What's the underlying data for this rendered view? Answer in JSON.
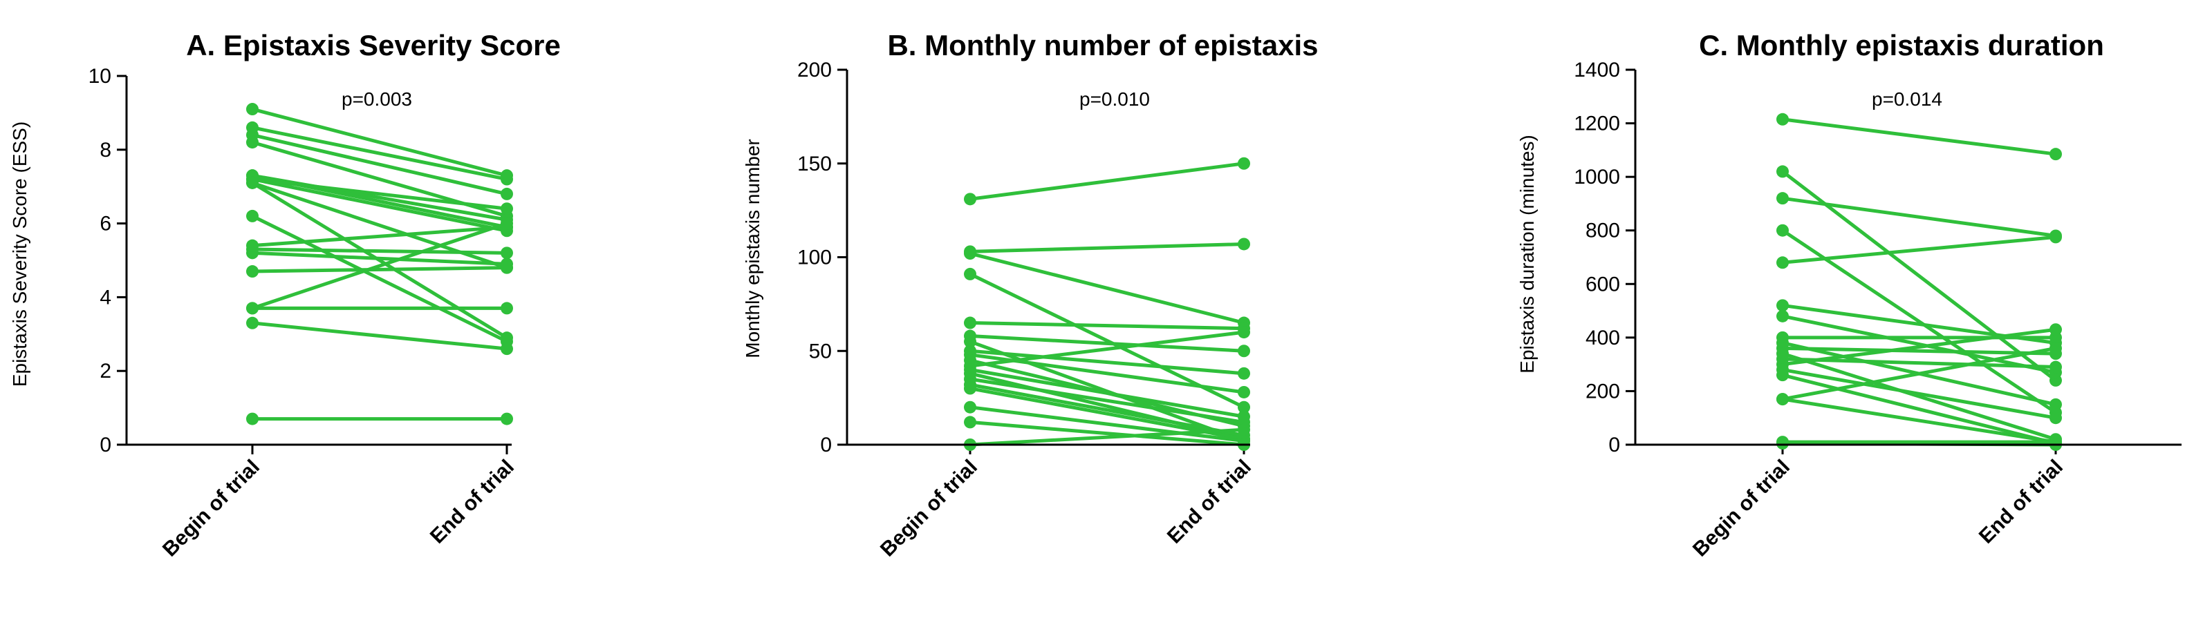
{
  "colors": {
    "series": "#2fbf3a",
    "axis": "#000000"
  },
  "chart_data": [
    {
      "type": "line",
      "title": "A. Epistaxis Severity Score",
      "annotation": "p=0.003",
      "ylabel": "Epistaxis Severity Score  (ESS)",
      "xlabel": "",
      "categories": [
        "Begin of trial",
        "End of trial"
      ],
      "ylim": [
        0,
        10
      ],
      "yticks": [
        0,
        2,
        4,
        6,
        8,
        10
      ],
      "pairs": [
        [
          9.1,
          7.3
        ],
        [
          8.6,
          7.2
        ],
        [
          8.4,
          6.8
        ],
        [
          8.2,
          6.2
        ],
        [
          7.3,
          5.9
        ],
        [
          7.3,
          6.1
        ],
        [
          7.2,
          5.8
        ],
        [
          7.2,
          6.4
        ],
        [
          7.1,
          4.8
        ],
        [
          7.1,
          2.9
        ],
        [
          6.2,
          2.8
        ],
        [
          5.3,
          5.2
        ],
        [
          5.2,
          4.9
        ],
        [
          5.4,
          5.9
        ],
        [
          4.7,
          4.8
        ],
        [
          3.7,
          6.0
        ],
        [
          3.7,
          3.7
        ],
        [
          3.3,
          2.6
        ],
        [
          0.7,
          0.7
        ]
      ]
    },
    {
      "type": "line",
      "title": "B. Monthly number of epistaxis",
      "annotation": "p=0.010",
      "ylabel": "Monthly epistaxis number",
      "xlabel": "",
      "categories": [
        "Begin of trial",
        "End of trial"
      ],
      "ylim": [
        0,
        200
      ],
      "yticks": [
        0,
        50,
        100,
        150,
        200
      ],
      "pairs": [
        [
          131,
          150
        ],
        [
          103,
          107
        ],
        [
          102,
          65
        ],
        [
          91,
          20
        ],
        [
          65,
          62
        ],
        [
          58,
          50
        ],
        [
          55,
          2
        ],
        [
          50,
          38
        ],
        [
          48,
          28
        ],
        [
          45,
          10
        ],
        [
          42,
          60
        ],
        [
          40,
          15
        ],
        [
          38,
          3
        ],
        [
          35,
          12
        ],
        [
          32,
          5
        ],
        [
          30,
          3
        ],
        [
          20,
          2
        ],
        [
          12,
          0
        ],
        [
          0,
          8
        ]
      ]
    },
    {
      "type": "line",
      "title": "C. Monthly epistaxis duration",
      "annotation": "p=0.014",
      "ylabel": "Epistaxis duration  (minutes)",
      "xlabel": "",
      "categories": [
        "Begin of trial",
        "End of trial"
      ],
      "ylim": [
        0,
        1400
      ],
      "yticks": [
        0,
        200,
        400,
        600,
        800,
        1000,
        1200,
        1400
      ],
      "pairs": [
        [
          1215,
          1085
        ],
        [
          1020,
          240
        ],
        [
          920,
          780
        ],
        [
          800,
          120
        ],
        [
          680,
          775
        ],
        [
          520,
          380
        ],
        [
          480,
          270
        ],
        [
          400,
          400
        ],
        [
          380,
          150
        ],
        [
          360,
          340
        ],
        [
          340,
          20
        ],
        [
          320,
          290
        ],
        [
          300,
          430
        ],
        [
          280,
          100
        ],
        [
          260,
          5
        ],
        [
          170,
          360
        ],
        [
          170,
          10
        ],
        [
          10,
          10
        ],
        [
          5,
          0
        ]
      ]
    }
  ]
}
